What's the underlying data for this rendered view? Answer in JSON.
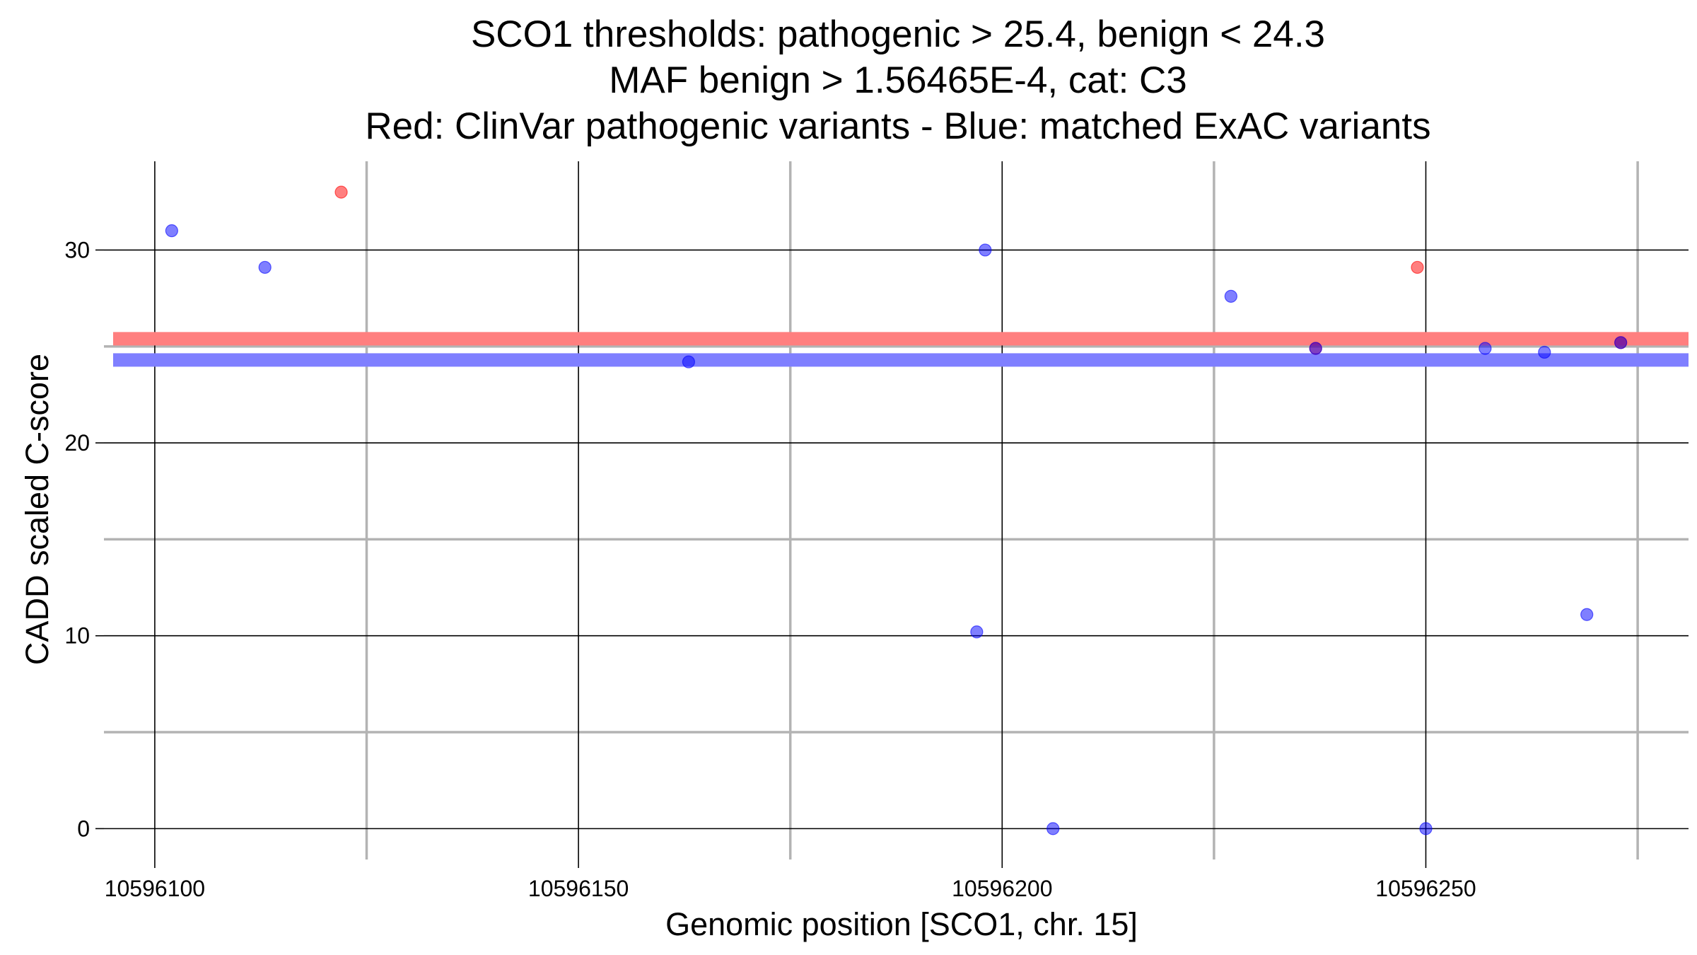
{
  "chart_data": {
    "type": "scatter",
    "title_lines": [
      "SCO1 thresholds: pathogenic > 25.4, benign < 24.3",
      "MAF benign > 1.56465E-4, cat: C3",
      "Red: ClinVar pathogenic variants - Blue: matched ExAC variants"
    ],
    "xlabel": "Genomic position [SCO1, chr. 15]",
    "ylabel": "CADD scaled C-score",
    "xlim": [
      10596094,
      10596281
    ],
    "ylim": [
      -1.6,
      34.6
    ],
    "x_major_ticks": [
      10596100,
      10596150,
      10596200,
      10596250
    ],
    "x_minor_grid": [
      10596125,
      10596175,
      10596225,
      10596275
    ],
    "y_major_ticks": [
      0,
      10,
      20,
      30
    ],
    "y_minor_grid": [
      5,
      15,
      25
    ],
    "grid": true,
    "thresholds": [
      {
        "name": "pathogenic",
        "value": 25.4,
        "color": "#ff7f7f"
      },
      {
        "name": "benign",
        "value": 24.3,
        "color": "#7f7fff"
      }
    ],
    "series": [
      {
        "name": "ClinVar pathogenic variants",
        "color": "#ff0000",
        "points": [
          {
            "x": 10596122,
            "y": 33.0
          },
          {
            "x": 10596237,
            "y": 24.9
          },
          {
            "x": 10596249,
            "y": 29.1
          },
          {
            "x": 10596273,
            "y": 25.2
          }
        ]
      },
      {
        "name": "matched ExAC variants",
        "color": "#0000ff",
        "points": [
          {
            "x": 10596102,
            "y": 31.0
          },
          {
            "x": 10596113,
            "y": 29.1
          },
          {
            "x": 10596163,
            "y": 24.2
          },
          {
            "x": 10596197,
            "y": 10.2
          },
          {
            "x": 10596198,
            "y": 30.0
          },
          {
            "x": 10596206,
            "y": 0.0
          },
          {
            "x": 10596227,
            "y": 27.6
          },
          {
            "x": 10596237,
            "y": 24.9
          },
          {
            "x": 10596250,
            "y": 0.0
          },
          {
            "x": 10596257,
            "y": 24.9
          },
          {
            "x": 10596264,
            "y": 24.7
          },
          {
            "x": 10596269,
            "y": 11.1
          },
          {
            "x": 10596273,
            "y": 25.2
          }
        ]
      }
    ]
  }
}
